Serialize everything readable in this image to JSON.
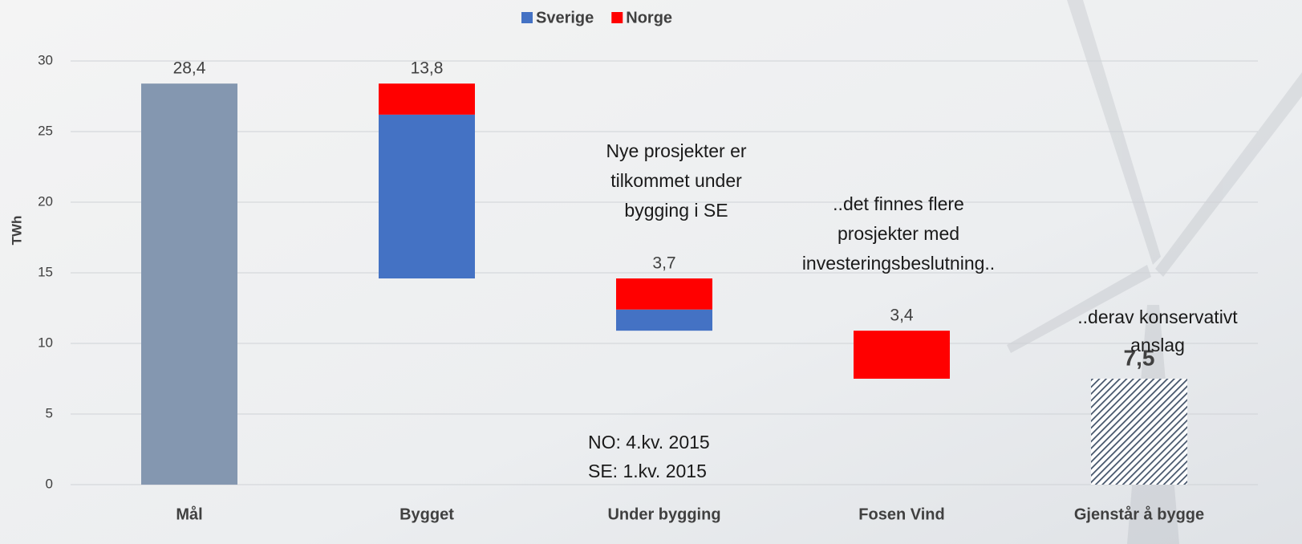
{
  "chart_data": {
    "type": "waterfall",
    "categories": [
      "Mål",
      "Bygget",
      "Under bygging",
      "Fosen Vind",
      "Gjenstår å bygge"
    ],
    "values": [
      28.4,
      13.8,
      3.7,
      3.4,
      7.5
    ],
    "value_labels": [
      "28,4",
      "13,8",
      "3,7",
      "3,4",
      "7,5"
    ],
    "series": [
      {
        "name": "Sverige",
        "color": "#4472c4",
        "values": [
          null,
          11.6,
          1.5,
          null,
          null
        ]
      },
      {
        "name": "Norge",
        "color": "#ff0000",
        "values": [
          null,
          2.2,
          2.2,
          3.4,
          null
        ]
      }
    ],
    "total_colors": [
      "#8497b0",
      null,
      null,
      null,
      "#44546a"
    ],
    "hatched": [
      false,
      false,
      false,
      false,
      true
    ],
    "y_label": "TWh",
    "ylim": [
      0,
      30
    ],
    "yticks": [
      0,
      5,
      10,
      15,
      20,
      25,
      30
    ],
    "grid": true,
    "legend": "top",
    "annotations": [
      {
        "lines": [
          "Nye prosjekter er",
          "tilkommet under",
          "bygging i SE"
        ]
      },
      {
        "lines": [
          "..det finnes flere",
          "prosjekter med",
          "investeringsbeslutning.."
        ]
      },
      {
        "lines": [
          "..derav konservativt",
          "anslag"
        ]
      },
      {
        "lines": [
          "NO: 4.kv. 2015",
          "SE: 1.kv. 2015"
        ]
      }
    ]
  }
}
